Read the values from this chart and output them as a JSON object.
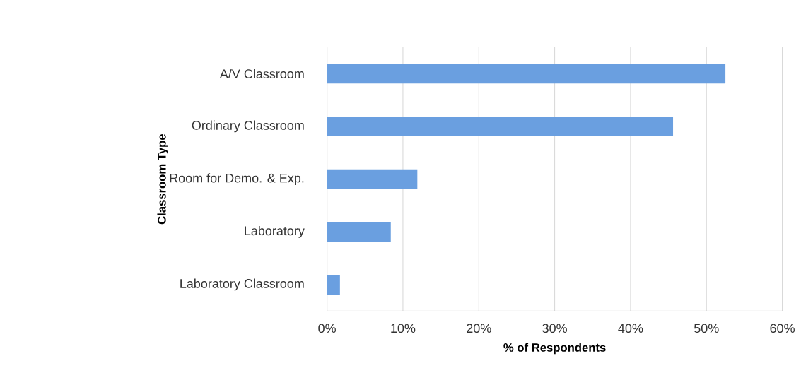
{
  "chart_data": {
    "type": "bar",
    "orientation": "horizontal",
    "xlabel": "% of Respondents",
    "ylabel": "Classroom Type",
    "categories": [
      "A/V Classroom",
      "Ordinary Classroom",
      "Room for Demo. & Exp.",
      "Laboratory",
      "Laboratory Classroom"
    ],
    "values": [
      52.5,
      45.6,
      11.9,
      8.4,
      1.7
    ],
    "color": "#6a9fe0",
    "xlim": [
      0,
      60
    ],
    "xticks": [
      {
        "value": 0,
        "label": "0%"
      },
      {
        "value": 10,
        "label": "10%"
      },
      {
        "value": 20,
        "label": "20%"
      },
      {
        "value": 30,
        "label": "30%"
      },
      {
        "value": 40,
        "label": "40%"
      },
      {
        "value": 50,
        "label": "50%"
      },
      {
        "value": 60,
        "label": "60%"
      }
    ],
    "grid": "x"
  }
}
